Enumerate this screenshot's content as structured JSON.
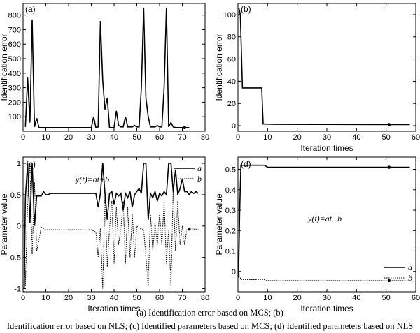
{
  "captions": {
    "line1": "(a) Identification error based on MCS; (b)",
    "line2": "Identification error based on NLS; (c) Identified parameters based on MCS; (d) Identified parameters based on NLS"
  },
  "chart_data": [
    {
      "id": "a",
      "type": "line",
      "panel_label": "(a)",
      "xlabel": "",
      "ylabel": "Identification error",
      "xlim": [
        0,
        80
      ],
      "ylim": [
        0,
        880
      ],
      "xticks": [
        0,
        10,
        20,
        30,
        40,
        50,
        60,
        70,
        80
      ],
      "yticks": [
        100,
        200,
        300,
        400,
        500,
        600,
        700,
        800
      ],
      "series": [
        {
          "style": "solid",
          "x": [
            1,
            2,
            3,
            4,
            5,
            6,
            7,
            8,
            10,
            15,
            20,
            25,
            30,
            31,
            32,
            33,
            34,
            35,
            36,
            37,
            38,
            39,
            40,
            41,
            42,
            43,
            44,
            45,
            46,
            47,
            48,
            49,
            50,
            51,
            52,
            53,
            54,
            55,
            56,
            57,
            58,
            59,
            60,
            61,
            62,
            63,
            64,
            65,
            66,
            67,
            68,
            69,
            70,
            71,
            72,
            73
          ],
          "y": [
            30,
            370,
            60,
            770,
            30,
            90,
            25,
            25,
            25,
            25,
            25,
            25,
            25,
            100,
            25,
            30,
            760,
            350,
            150,
            230,
            25,
            25,
            25,
            140,
            40,
            30,
            30,
            100,
            30,
            30,
            30,
            40,
            30,
            30,
            300,
            850,
            230,
            100,
            30,
            30,
            30,
            40,
            30,
            30,
            300,
            850,
            30,
            60,
            30,
            25,
            25,
            25,
            25,
            25,
            25,
            25
          ]
        }
      ],
      "markers": [
        {
          "x": 71,
          "y": 25
        }
      ]
    },
    {
      "id": "b",
      "type": "line",
      "panel_label": "(b)",
      "xlabel": "Iteration times",
      "ylabel": "Identification error",
      "xlim": [
        0,
        60
      ],
      "ylim": [
        -5,
        110
      ],
      "xticks": [
        0,
        10,
        20,
        30,
        40,
        50,
        60
      ],
      "yticks": [
        0,
        20,
        40,
        60,
        80,
        100
      ],
      "series": [
        {
          "style": "solid",
          "x": [
            0.3,
            0.8,
            1.5,
            2,
            8,
            8.5,
            9,
            13,
            58
          ],
          "y": [
            106,
            100,
            34,
            34,
            34,
            1.5,
            1.5,
            1.2,
            1.0
          ]
        }
      ],
      "markers": [
        {
          "x": 51,
          "y": 1.0
        }
      ]
    },
    {
      "id": "c",
      "type": "line",
      "panel_label": "(c)",
      "equation": "y(t)=at+b",
      "xlabel": "Iteration times",
      "ylabel": "Parameter value",
      "xlim": [
        0,
        80
      ],
      "ylim": [
        -1.05,
        1.1
      ],
      "xticks": [
        0,
        10,
        20,
        30,
        40,
        50,
        60,
        70,
        80
      ],
      "yticks": [
        -1,
        -0.5,
        0,
        0.5,
        1
      ],
      "yticklabels": [
        "-1",
        "-0.5",
        "0",
        "0.5",
        "1"
      ],
      "series": [
        {
          "name": "a",
          "style": "solid",
          "x": [
            0.5,
            1,
            2,
            3,
            4,
            5,
            6,
            8,
            9,
            10,
            11,
            12,
            15,
            20,
            25,
            30,
            32,
            33,
            34,
            35,
            36,
            37,
            38,
            39,
            40,
            41,
            42,
            43,
            44,
            45,
            46,
            47,
            48,
            49,
            50,
            51,
            52,
            53,
            54,
            55,
            56,
            57,
            58,
            59,
            60,
            61,
            62,
            63,
            64,
            65,
            66,
            67,
            68,
            69,
            70,
            71,
            72,
            73,
            74,
            75,
            76,
            77
          ],
          "y": [
            -1,
            0.45,
            1,
            0.05,
            1,
            0,
            0.48,
            0.48,
            0.55,
            0.5,
            0.5,
            0.52,
            0.52,
            0.52,
            0.52,
            0.52,
            0.52,
            0.3,
            0.52,
            1,
            0.52,
            0.1,
            0.52,
            0.55,
            0.35,
            0.52,
            0.48,
            0.52,
            0.25,
            0.52,
            0.45,
            0.55,
            0.3,
            0.5,
            0.55,
            0.6,
            0.52,
            1,
            1,
            0.1,
            0.52,
            0.45,
            0.55,
            0.4,
            0.52,
            0.48,
            0.55,
            0.5,
            1,
            1,
            0.55,
            0.9,
            0.5,
            0.6,
            0.75,
            0.55,
            0.55,
            0.5,
            0.55,
            0.52,
            0.55,
            0.52
          ]
        },
        {
          "name": "b",
          "style": "dotted",
          "x": [
            0.5,
            1,
            2,
            3,
            4,
            5,
            6,
            8,
            10,
            15,
            20,
            25,
            30,
            32,
            33,
            34,
            35,
            36,
            37,
            38,
            39,
            40,
            41,
            42,
            43,
            44,
            45,
            46,
            47,
            48,
            49,
            50,
            51,
            52,
            53,
            54,
            55,
            56,
            57,
            58,
            59,
            60,
            61,
            62,
            63,
            64,
            65,
            66,
            67,
            68,
            69,
            70,
            71,
            72,
            73,
            74,
            75,
            76,
            77
          ],
          "y": [
            0.2,
            -0.95,
            0.4,
            1,
            -0.45,
            0.7,
            -0.4,
            -0.02,
            -0.06,
            -0.06,
            -0.06,
            -0.06,
            -0.06,
            -0.1,
            -0.5,
            -0.04,
            -1,
            0.5,
            -0.65,
            -0.05,
            0.4,
            -0.6,
            0.3,
            -0.3,
            -0.05,
            0.4,
            -0.6,
            0.3,
            -0.5,
            0.2,
            -0.5,
            0,
            -0.04,
            -0.05,
            -0.05,
            -0.5,
            -0.95,
            0.2,
            -0.4,
            0.05,
            -0.3,
            0.2,
            -0.3,
            0.4,
            -0.6,
            -0.05,
            -0.95,
            0.6,
            -0.4,
            0.4,
            -0.3,
            0,
            -0.3,
            -0.05,
            -0.05,
            -0.04,
            -0.05,
            -0.05,
            -0.05
          ]
        }
      ],
      "markers": [
        {
          "x": 73,
          "y": -0.05
        }
      ],
      "legend": [
        "a",
        "b"
      ],
      "legend_position": "top-right"
    },
    {
      "id": "d",
      "type": "line",
      "panel_label": "(d)",
      "equation": "y(t)=at+b",
      "xlabel": "Iteration times",
      "ylabel": "Parameter value",
      "xlim": [
        0,
        60
      ],
      "ylim": [
        -0.1,
        0.56
      ],
      "xticks": [
        0,
        10,
        20,
        30,
        40,
        50,
        60
      ],
      "yticks": [
        0,
        0.1,
        0.2,
        0.3,
        0.4,
        0.5
      ],
      "yticklabels": [
        "0",
        "0.1",
        "0.2",
        "0.3",
        "0.4",
        "0.5"
      ],
      "series": [
        {
          "name": "a",
          "style": "solid",
          "x": [
            0.2,
            0.6,
            1,
            9,
            9.5,
            10,
            58
          ],
          "y": [
            -0.03,
            0.3,
            0.52,
            0.52,
            0.515,
            0.51,
            0.51
          ]
        },
        {
          "name": "b",
          "style": "dotted",
          "x": [
            0.2,
            0.5,
            1,
            9,
            9.5,
            10,
            58
          ],
          "y": [
            0.02,
            -0.02,
            -0.04,
            -0.04,
            -0.045,
            -0.045,
            -0.045
          ]
        }
      ],
      "markers": [
        {
          "x": 51,
          "y": 0.51
        },
        {
          "x": 51,
          "y": -0.045
        }
      ],
      "legend": [
        "a",
        "b"
      ],
      "legend_position": "bottom-right"
    }
  ]
}
